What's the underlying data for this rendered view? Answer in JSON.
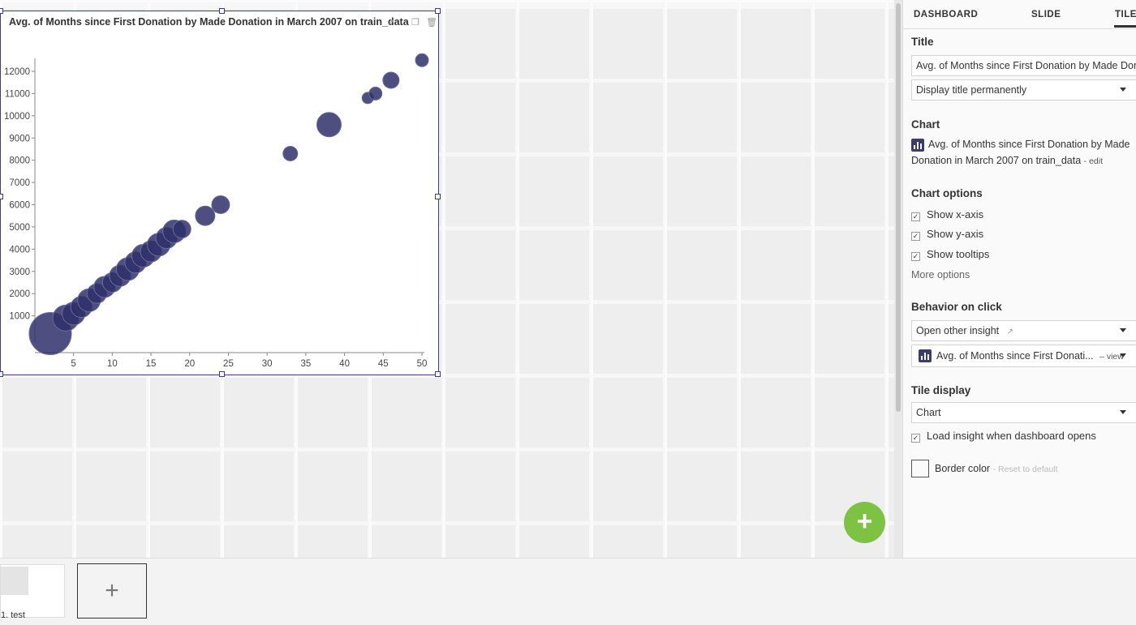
{
  "tile": {
    "title": "Avg. of Months since First Donation by Made Donation in March 2007 on train_data",
    "open_icon": "external-link-icon",
    "copy_icon": "duplicate-icon",
    "delete_icon": "trash-icon"
  },
  "chart_data": {
    "type": "scatter",
    "title": "Avg. of Months since First Donation by Made Donation in March 2007 on train_data",
    "xlabel": "",
    "ylabel": "",
    "xlim": [
      2,
      50
    ],
    "ylim": [
      0,
      12500
    ],
    "x_ticks": [
      "5",
      "10",
      "15",
      "20",
      "25",
      "30",
      "35",
      "40",
      "45",
      "50"
    ],
    "y_ticks": [
      "1000",
      "2000",
      "3000",
      "4000",
      "5000",
      "6000",
      "7000",
      "8000",
      "9000",
      "10000",
      "11000",
      "12000"
    ],
    "point_color": "#2f2f6a",
    "points": [
      {
        "x": 2,
        "y": 200,
        "r": 26
      },
      {
        "x": 4,
        "y": 900,
        "r": 16
      },
      {
        "x": 5,
        "y": 1100,
        "r": 14
      },
      {
        "x": 6,
        "y": 1400,
        "r": 13
      },
      {
        "x": 7,
        "y": 1700,
        "r": 14
      },
      {
        "x": 8,
        "y": 2000,
        "r": 12
      },
      {
        "x": 9,
        "y": 2300,
        "r": 13
      },
      {
        "x": 10,
        "y": 2500,
        "r": 12
      },
      {
        "x": 11,
        "y": 2800,
        "r": 13
      },
      {
        "x": 12,
        "y": 3100,
        "r": 14
      },
      {
        "x": 13,
        "y": 3400,
        "r": 13
      },
      {
        "x": 14,
        "y": 3700,
        "r": 14
      },
      {
        "x": 15,
        "y": 3900,
        "r": 13
      },
      {
        "x": 16,
        "y": 4200,
        "r": 14
      },
      {
        "x": 17,
        "y": 4500,
        "r": 13
      },
      {
        "x": 18,
        "y": 4800,
        "r": 14
      },
      {
        "x": 19,
        "y": 4900,
        "r": 11
      },
      {
        "x": 22,
        "y": 5500,
        "r": 12
      },
      {
        "x": 24,
        "y": 6000,
        "r": 11
      },
      {
        "x": 33,
        "y": 8300,
        "r": 9
      },
      {
        "x": 38,
        "y": 9600,
        "r": 15
      },
      {
        "x": 43,
        "y": 10800,
        "r": 7
      },
      {
        "x": 44,
        "y": 11000,
        "r": 8
      },
      {
        "x": 46,
        "y": 11600,
        "r": 10
      },
      {
        "x": 50,
        "y": 12500,
        "r": 8
      }
    ]
  },
  "panel": {
    "tabs": [
      "DASHBOARD",
      "SLIDE",
      "TILE"
    ],
    "active_tab": "TILE",
    "title_section": "Title",
    "title_value": "Avg. of Months since First Donation by Made Dona",
    "title_display": "Display title permanently",
    "chart_section": "Chart",
    "chart_name_line1": "Avg. of Months since First Donation by Made",
    "chart_name_line2": "Donation in March 2007 on train_data",
    "chart_edit": "- edit",
    "chart_options_section": "Chart options",
    "show_x_axis": "Show x-axis",
    "show_y_axis": "Show y-axis",
    "show_tooltips": "Show tooltips",
    "more_options": "More options",
    "behavior_section": "Behavior on click",
    "behavior_value": "Open other insight",
    "insight_value": "Avg. of Months since First Donati...",
    "insight_view": "– view",
    "tile_display_section": "Tile display",
    "tile_display_value": "Chart",
    "load_insight": "Load insight when dashboard opens",
    "border_color": "Border color",
    "reset_default": "- Reset to default"
  },
  "fab_label": "+",
  "slides": {
    "current_label": "1. test",
    "add_label": "+"
  }
}
